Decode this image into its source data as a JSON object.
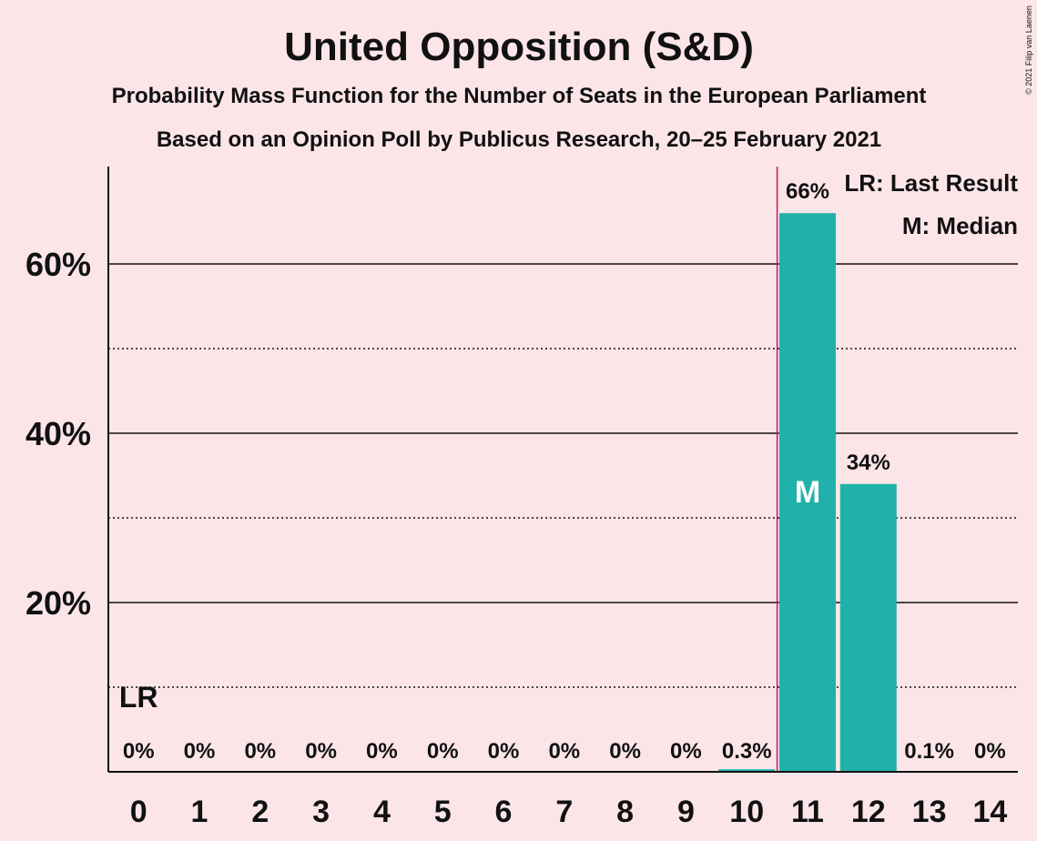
{
  "chart_data": {
    "type": "bar",
    "title": "United Opposition (S&D)",
    "subtitle1": "Probability Mass Function for the Number of Seats in the European Parliament",
    "subtitle2": "Based on an Opinion Poll by Publicus Research, 20–25 February 2021",
    "copyright": "© 2021 Filip van Laenen",
    "categories": [
      "0",
      "1",
      "2",
      "3",
      "4",
      "5",
      "6",
      "7",
      "8",
      "9",
      "10",
      "11",
      "12",
      "13",
      "14"
    ],
    "values": [
      0,
      0,
      0,
      0,
      0,
      0,
      0,
      0,
      0,
      0,
      0.3,
      66,
      34,
      0.1,
      0
    ],
    "value_labels": [
      "0%",
      "0%",
      "0%",
      "0%",
      "0%",
      "0%",
      "0%",
      "0%",
      "0%",
      "0%",
      "0.3%",
      "66%",
      "34%",
      "0.1%",
      "0%"
    ],
    "ylim": [
      0,
      72
    ],
    "major_ticks": [
      20,
      40,
      60
    ],
    "major_tick_labels": [
      "20%",
      "40%",
      "60%"
    ],
    "minor_gridlines": [
      10,
      30,
      50
    ],
    "last_result_seat": "0",
    "last_result_marker": "LR",
    "median_seat": "11",
    "median_marker": "M",
    "legend": {
      "lr": "LR: Last Result",
      "m": "M: Median",
      "placement": "top-right"
    },
    "colors": {
      "background": "#fce5e8",
      "bar": "#20b2aa",
      "lr_line": "#c2185b",
      "text": "#111111"
    }
  }
}
